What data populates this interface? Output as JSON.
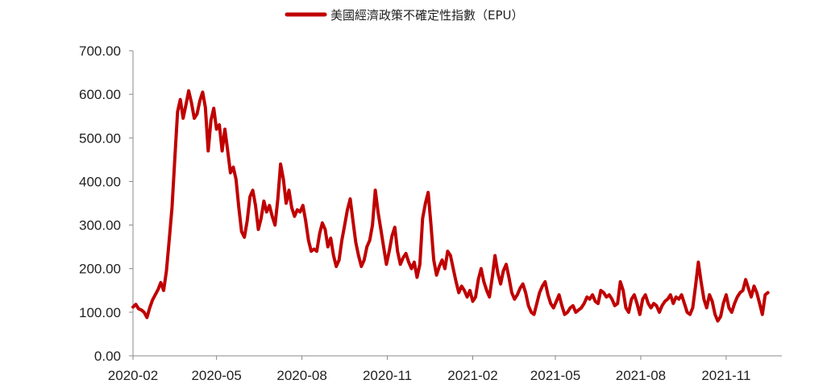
{
  "chart_data": {
    "type": "line",
    "title": "",
    "xlabel": "",
    "ylabel": "",
    "legend": {
      "position": "top-center",
      "label": "美國經濟政策不確定性指數（EPU）"
    },
    "series_color": "#c00000",
    "ylim": [
      0,
      700
    ],
    "y_ticks": [
      "0.00",
      "100.00",
      "200.00",
      "300.00",
      "400.00",
      "500.00",
      "600.00",
      "700.00"
    ],
    "x_ticks": [
      "2020-02",
      "2020-05",
      "2020-08",
      "2020-11",
      "2021-02",
      "2021-05",
      "2021-08",
      "2021-11"
    ],
    "x_range": [
      "2020-02-01",
      "2021-12-31"
    ],
    "grid": false,
    "series": [
      {
        "name": "美國經濟政策不確定性指數（EPU）",
        "points": [
          [
            "2020-02-01",
            112
          ],
          [
            "2020-02-04",
            118
          ],
          [
            "2020-02-07",
            108
          ],
          [
            "2020-02-10",
            105
          ],
          [
            "2020-02-13",
            100
          ],
          [
            "2020-02-16",
            88
          ],
          [
            "2020-02-19",
            110
          ],
          [
            "2020-02-22",
            128
          ],
          [
            "2020-02-25",
            140
          ],
          [
            "2020-02-28",
            152
          ],
          [
            "2020-03-02",
            168
          ],
          [
            "2020-03-05",
            150
          ],
          [
            "2020-03-08",
            195
          ],
          [
            "2020-03-11",
            265
          ],
          [
            "2020-03-14",
            340
          ],
          [
            "2020-03-17",
            450
          ],
          [
            "2020-03-20",
            560
          ],
          [
            "2020-03-23",
            588
          ],
          [
            "2020-03-26",
            545
          ],
          [
            "2020-03-29",
            575
          ],
          [
            "2020-04-01",
            608
          ],
          [
            "2020-04-04",
            580
          ],
          [
            "2020-04-07",
            545
          ],
          [
            "2020-04-10",
            555
          ],
          [
            "2020-04-13",
            585
          ],
          [
            "2020-04-16",
            605
          ],
          [
            "2020-04-19",
            570
          ],
          [
            "2020-04-22",
            470
          ],
          [
            "2020-04-25",
            540
          ],
          [
            "2020-04-28",
            568
          ],
          [
            "2020-05-01",
            520
          ],
          [
            "2020-05-04",
            530
          ],
          [
            "2020-05-07",
            470
          ],
          [
            "2020-05-10",
            520
          ],
          [
            "2020-05-13",
            470
          ],
          [
            "2020-05-16",
            420
          ],
          [
            "2020-05-19",
            433
          ],
          [
            "2020-05-22",
            405
          ],
          [
            "2020-05-25",
            340
          ],
          [
            "2020-05-28",
            285
          ],
          [
            "2020-05-31",
            272
          ],
          [
            "2020-06-03",
            310
          ],
          [
            "2020-06-06",
            365
          ],
          [
            "2020-06-09",
            380
          ],
          [
            "2020-06-12",
            345
          ],
          [
            "2020-06-15",
            290
          ],
          [
            "2020-06-18",
            315
          ],
          [
            "2020-06-21",
            355
          ],
          [
            "2020-06-24",
            330
          ],
          [
            "2020-06-27",
            345
          ],
          [
            "2020-06-30",
            320
          ],
          [
            "2020-07-03",
            300
          ],
          [
            "2020-07-06",
            360
          ],
          [
            "2020-07-09",
            440
          ],
          [
            "2020-07-12",
            405
          ],
          [
            "2020-07-15",
            350
          ],
          [
            "2020-07-18",
            380
          ],
          [
            "2020-07-21",
            340
          ],
          [
            "2020-07-24",
            320
          ],
          [
            "2020-07-27",
            335
          ],
          [
            "2020-07-30",
            330
          ],
          [
            "2020-08-02",
            345
          ],
          [
            "2020-08-05",
            310
          ],
          [
            "2020-08-08",
            265
          ],
          [
            "2020-08-11",
            240
          ],
          [
            "2020-08-14",
            245
          ],
          [
            "2020-08-17",
            240
          ],
          [
            "2020-08-20",
            280
          ],
          [
            "2020-08-23",
            305
          ],
          [
            "2020-08-26",
            290
          ],
          [
            "2020-08-29",
            250
          ],
          [
            "2020-09-01",
            270
          ],
          [
            "2020-09-04",
            230
          ],
          [
            "2020-09-07",
            205
          ],
          [
            "2020-09-10",
            220
          ],
          [
            "2020-09-13",
            265
          ],
          [
            "2020-09-16",
            300
          ],
          [
            "2020-09-19",
            335
          ],
          [
            "2020-09-22",
            360
          ],
          [
            "2020-09-25",
            310
          ],
          [
            "2020-09-28",
            260
          ],
          [
            "2020-10-01",
            230
          ],
          [
            "2020-10-04",
            205
          ],
          [
            "2020-10-07",
            220
          ],
          [
            "2020-10-10",
            250
          ],
          [
            "2020-10-13",
            265
          ],
          [
            "2020-10-16",
            300
          ],
          [
            "2020-10-19",
            380
          ],
          [
            "2020-10-22",
            330
          ],
          [
            "2020-10-25",
            290
          ],
          [
            "2020-10-28",
            250
          ],
          [
            "2020-10-31",
            210
          ],
          [
            "2020-11-03",
            240
          ],
          [
            "2020-11-06",
            275
          ],
          [
            "2020-11-09",
            295
          ],
          [
            "2020-11-12",
            240
          ],
          [
            "2020-11-15",
            210
          ],
          [
            "2020-11-18",
            225
          ],
          [
            "2020-11-21",
            235
          ],
          [
            "2020-11-24",
            215
          ],
          [
            "2020-11-27",
            200
          ],
          [
            "2020-11-30",
            215
          ],
          [
            "2020-12-03",
            180
          ],
          [
            "2020-12-06",
            210
          ],
          [
            "2020-12-09",
            315
          ],
          [
            "2020-12-12",
            350
          ],
          [
            "2020-12-15",
            375
          ],
          [
            "2020-12-18",
            300
          ],
          [
            "2020-12-21",
            220
          ],
          [
            "2020-12-24",
            185
          ],
          [
            "2020-12-27",
            205
          ],
          [
            "2020-12-30",
            220
          ],
          [
            "2021-01-02",
            200
          ],
          [
            "2021-01-05",
            240
          ],
          [
            "2021-01-08",
            230
          ],
          [
            "2021-01-11",
            200
          ],
          [
            "2021-01-14",
            170
          ],
          [
            "2021-01-17",
            145
          ],
          [
            "2021-01-20",
            160
          ],
          [
            "2021-01-23",
            150
          ],
          [
            "2021-01-26",
            135
          ],
          [
            "2021-01-29",
            150
          ],
          [
            "2021-02-01",
            125
          ],
          [
            "2021-02-04",
            135
          ],
          [
            "2021-02-07",
            175
          ],
          [
            "2021-02-10",
            200
          ],
          [
            "2021-02-13",
            170
          ],
          [
            "2021-02-16",
            150
          ],
          [
            "2021-02-19",
            135
          ],
          [
            "2021-02-22",
            180
          ],
          [
            "2021-02-25",
            230
          ],
          [
            "2021-02-28",
            190
          ],
          [
            "2021-03-03",
            165
          ],
          [
            "2021-03-06",
            195
          ],
          [
            "2021-03-09",
            210
          ],
          [
            "2021-03-12",
            180
          ],
          [
            "2021-03-15",
            145
          ],
          [
            "2021-03-18",
            130
          ],
          [
            "2021-03-21",
            140
          ],
          [
            "2021-03-24",
            155
          ],
          [
            "2021-03-27",
            165
          ],
          [
            "2021-03-30",
            145
          ],
          [
            "2021-04-02",
            115
          ],
          [
            "2021-04-05",
            100
          ],
          [
            "2021-04-08",
            95
          ],
          [
            "2021-04-11",
            120
          ],
          [
            "2021-04-14",
            145
          ],
          [
            "2021-04-17",
            160
          ],
          [
            "2021-04-20",
            170
          ],
          [
            "2021-04-23",
            140
          ],
          [
            "2021-04-26",
            120
          ],
          [
            "2021-04-29",
            110
          ],
          [
            "2021-05-02",
            125
          ],
          [
            "2021-05-05",
            140
          ],
          [
            "2021-05-08",
            115
          ],
          [
            "2021-05-11",
            95
          ],
          [
            "2021-05-14",
            100
          ],
          [
            "2021-05-17",
            110
          ],
          [
            "2021-05-20",
            115
          ],
          [
            "2021-05-23",
            100
          ],
          [
            "2021-05-26",
            105
          ],
          [
            "2021-05-29",
            110
          ],
          [
            "2021-06-01",
            120
          ],
          [
            "2021-06-04",
            135
          ],
          [
            "2021-06-07",
            130
          ],
          [
            "2021-06-10",
            140
          ],
          [
            "2021-06-13",
            125
          ],
          [
            "2021-06-16",
            120
          ],
          [
            "2021-06-19",
            150
          ],
          [
            "2021-06-22",
            145
          ],
          [
            "2021-06-25",
            135
          ],
          [
            "2021-06-28",
            140
          ],
          [
            "2021-07-01",
            130
          ],
          [
            "2021-07-04",
            115
          ],
          [
            "2021-07-07",
            120
          ],
          [
            "2021-07-10",
            170
          ],
          [
            "2021-07-13",
            150
          ],
          [
            "2021-07-16",
            110
          ],
          [
            "2021-07-19",
            100
          ],
          [
            "2021-07-22",
            130
          ],
          [
            "2021-07-25",
            140
          ],
          [
            "2021-07-28",
            120
          ],
          [
            "2021-07-31",
            95
          ],
          [
            "2021-08-03",
            130
          ],
          [
            "2021-08-06",
            140
          ],
          [
            "2021-08-09",
            120
          ],
          [
            "2021-08-12",
            110
          ],
          [
            "2021-08-15",
            120
          ],
          [
            "2021-08-18",
            115
          ],
          [
            "2021-08-21",
            100
          ],
          [
            "2021-08-24",
            115
          ],
          [
            "2021-08-27",
            125
          ],
          [
            "2021-08-30",
            130
          ],
          [
            "2021-09-02",
            140
          ],
          [
            "2021-09-05",
            120
          ],
          [
            "2021-09-08",
            135
          ],
          [
            "2021-09-11",
            130
          ],
          [
            "2021-09-14",
            140
          ],
          [
            "2021-09-17",
            120
          ],
          [
            "2021-09-20",
            100
          ],
          [
            "2021-09-23",
            95
          ],
          [
            "2021-09-26",
            110
          ],
          [
            "2021-09-29",
            160
          ],
          [
            "2021-10-02",
            215
          ],
          [
            "2021-10-05",
            170
          ],
          [
            "2021-10-08",
            130
          ],
          [
            "2021-10-11",
            110
          ],
          [
            "2021-10-14",
            140
          ],
          [
            "2021-10-17",
            125
          ],
          [
            "2021-10-20",
            95
          ],
          [
            "2021-10-23",
            80
          ],
          [
            "2021-10-26",
            90
          ],
          [
            "2021-10-29",
            120
          ],
          [
            "2021-11-01",
            140
          ],
          [
            "2021-11-04",
            110
          ],
          [
            "2021-11-07",
            100
          ],
          [
            "2021-11-10",
            120
          ],
          [
            "2021-11-13",
            135
          ],
          [
            "2021-11-16",
            145
          ],
          [
            "2021-11-19",
            150
          ],
          [
            "2021-11-22",
            175
          ],
          [
            "2021-11-25",
            155
          ],
          [
            "2021-11-28",
            135
          ],
          [
            "2021-12-01",
            160
          ],
          [
            "2021-12-04",
            145
          ],
          [
            "2021-12-07",
            120
          ],
          [
            "2021-12-10",
            95
          ],
          [
            "2021-12-13",
            140
          ],
          [
            "2021-12-16",
            145
          ]
        ]
      }
    ]
  }
}
